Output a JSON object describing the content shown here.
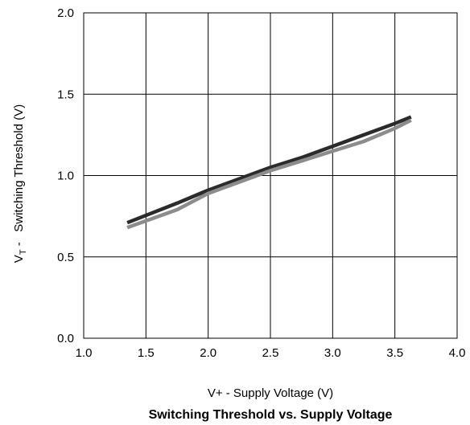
{
  "chart_data": {
    "type": "line",
    "title": "Switching Threshold vs. Supply Voltage",
    "xlabel": "V+ - Supply Voltage (V)",
    "ylabel": {
      "main": "V",
      "subscript": "T",
      "rest": " -   Switching Threshold (V)"
    },
    "xlim": [
      1.0,
      4.0
    ],
    "ylim": [
      0.0,
      2.0
    ],
    "x_ticks": [
      "1.0",
      "1.5",
      "2.0",
      "2.5",
      "3.0",
      "3.5",
      "4.0"
    ],
    "y_ticks": [
      "0.0",
      "0.5",
      "1.0",
      "1.5",
      "2.0"
    ],
    "grid": true,
    "series": [
      {
        "color": "#2b2b2b",
        "x": [
          1.35,
          1.75,
          2.0,
          2.25,
          2.5,
          2.75,
          3.0,
          3.25,
          3.5,
          3.63
        ],
        "y": [
          0.71,
          0.83,
          0.91,
          0.98,
          1.05,
          1.11,
          1.18,
          1.25,
          1.32,
          1.36
        ]
      },
      {
        "color": "#8c8c8c",
        "x": [
          1.35,
          1.75,
          2.0,
          2.25,
          2.5,
          2.75,
          3.0,
          3.25,
          3.5,
          3.63
        ],
        "y": [
          0.68,
          0.79,
          0.89,
          0.96,
          1.03,
          1.09,
          1.15,
          1.21,
          1.29,
          1.34
        ]
      }
    ]
  }
}
